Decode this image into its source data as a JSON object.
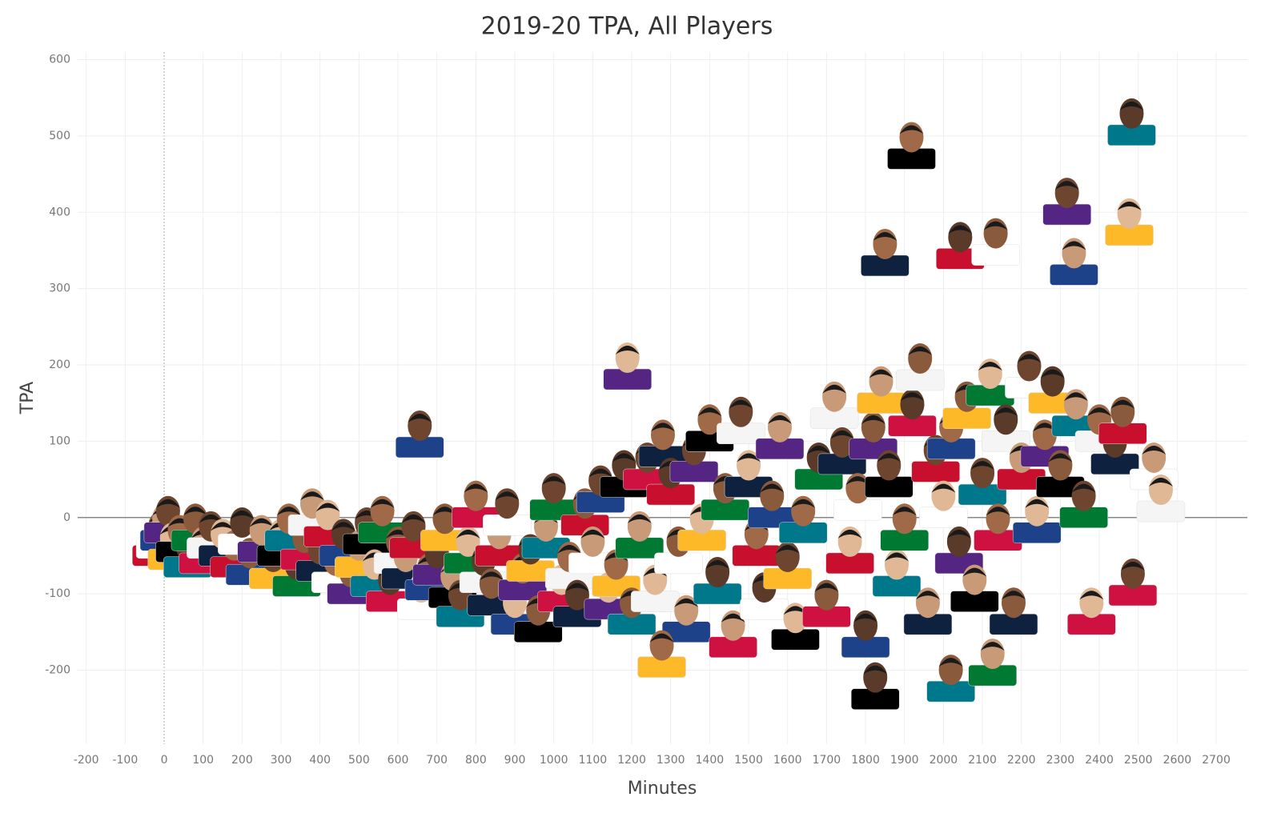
{
  "chart_data": {
    "type": "scatter",
    "title": "2019-20 TPA, All Players",
    "x_label": "Minutes",
    "y_label": "TPA",
    "x": [
      -20,
      -10,
      0,
      10,
      20,
      40,
      60,
      80,
      100,
      120,
      150,
      180,
      200,
      220,
      250,
      280,
      300,
      320,
      340,
      360,
      380,
      400,
      420,
      440,
      460,
      480,
      500,
      520,
      540,
      560,
      580,
      600,
      620,
      640,
      660,
      680,
      700,
      720,
      740,
      760,
      780,
      800,
      820,
      840,
      860,
      880,
      900,
      920,
      940,
      960,
      980,
      1000,
      1020,
      1040,
      1060,
      1080,
      1100,
      1120,
      1140,
      1160,
      1180,
      1200,
      1220,
      1240,
      1260,
      1280,
      1300,
      1320,
      1340,
      1360,
      1380,
      1400,
      1420,
      1440,
      1460,
      1480,
      1500,
      1520,
      1540,
      1560,
      1580,
      1600,
      1620,
      1640,
      1680,
      1700,
      1720,
      1740,
      1760,
      1780,
      1800,
      1820,
      1840,
      1860,
      1880,
      1900,
      1920,
      1940,
      1960,
      1980,
      2000,
      2020,
      2040,
      2060,
      2080,
      2100,
      2120,
      2140,
      2160,
      2180,
      2200,
      2220,
      2240,
      2260,
      2280,
      2300,
      2340,
      2360,
      2380,
      2400,
      2440,
      2460,
      2540,
      656,
      1189,
      1277,
      1825,
      2019,
      2126,
      2486,
      2558,
      1850,
      2043,
      2134,
      2335,
      2317,
      2477,
      1918,
      2483
    ],
    "y": [
      -30,
      -20,
      -10,
      0,
      -35,
      -25,
      -45,
      -10,
      -40,
      -20,
      -30,
      -45,
      -15,
      -55,
      -25,
      -60,
      -30,
      -10,
      -70,
      -35,
      10,
      -50,
      -5,
      -65,
      -30,
      -80,
      -45,
      -15,
      -70,
      0,
      -90,
      -40,
      -60,
      -20,
      -100,
      -75,
      -55,
      -10,
      -85,
      -110,
      -40,
      20,
      -65,
      -95,
      -30,
      10,
      -120,
      -75,
      -50,
      -130,
      -20,
      30,
      -90,
      -60,
      -110,
      10,
      -40,
      40,
      -100,
      -70,
      60,
      -120,
      -20,
      70,
      -90,
      100,
      50,
      -40,
      -130,
      80,
      -10,
      120,
      -80,
      30,
      -150,
      130,
      60,
      -30,
      -100,
      20,
      110,
      -60,
      -140,
      0,
      70,
      -110,
      150,
      90,
      -40,
      30,
      -150,
      110,
      170,
      60,
      -70,
      -10,
      140,
      200,
      -120,
      80,
      20,
      110,
      -40,
      150,
      -90,
      50,
      180,
      -10,
      120,
      -120,
      70,
      190,
      0,
      100,
      170,
      60,
      140,
      20,
      -120,
      120,
      90,
      130,
      70,
      112,
      201,
      -176,
      -218,
      -208,
      -187,
      -82,
      28,
      350,
      359,
      364,
      338,
      417,
      390,
      490,
      521
    ],
    "xlim": [
      -222,
      2780
    ],
    "ylim": [
      -297,
      610
    ],
    "xticks": [
      -200,
      -100,
      0,
      100,
      200,
      300,
      400,
      500,
      600,
      700,
      800,
      900,
      1000,
      1100,
      1200,
      1300,
      1400,
      1500,
      1600,
      1700,
      1800,
      1900,
      2000,
      2100,
      2200,
      2300,
      2400,
      2500,
      2600,
      2700
    ],
    "yticks": [
      -200,
      -100,
      0,
      100,
      200,
      300,
      400,
      500,
      600
    ],
    "grid": true
  }
}
